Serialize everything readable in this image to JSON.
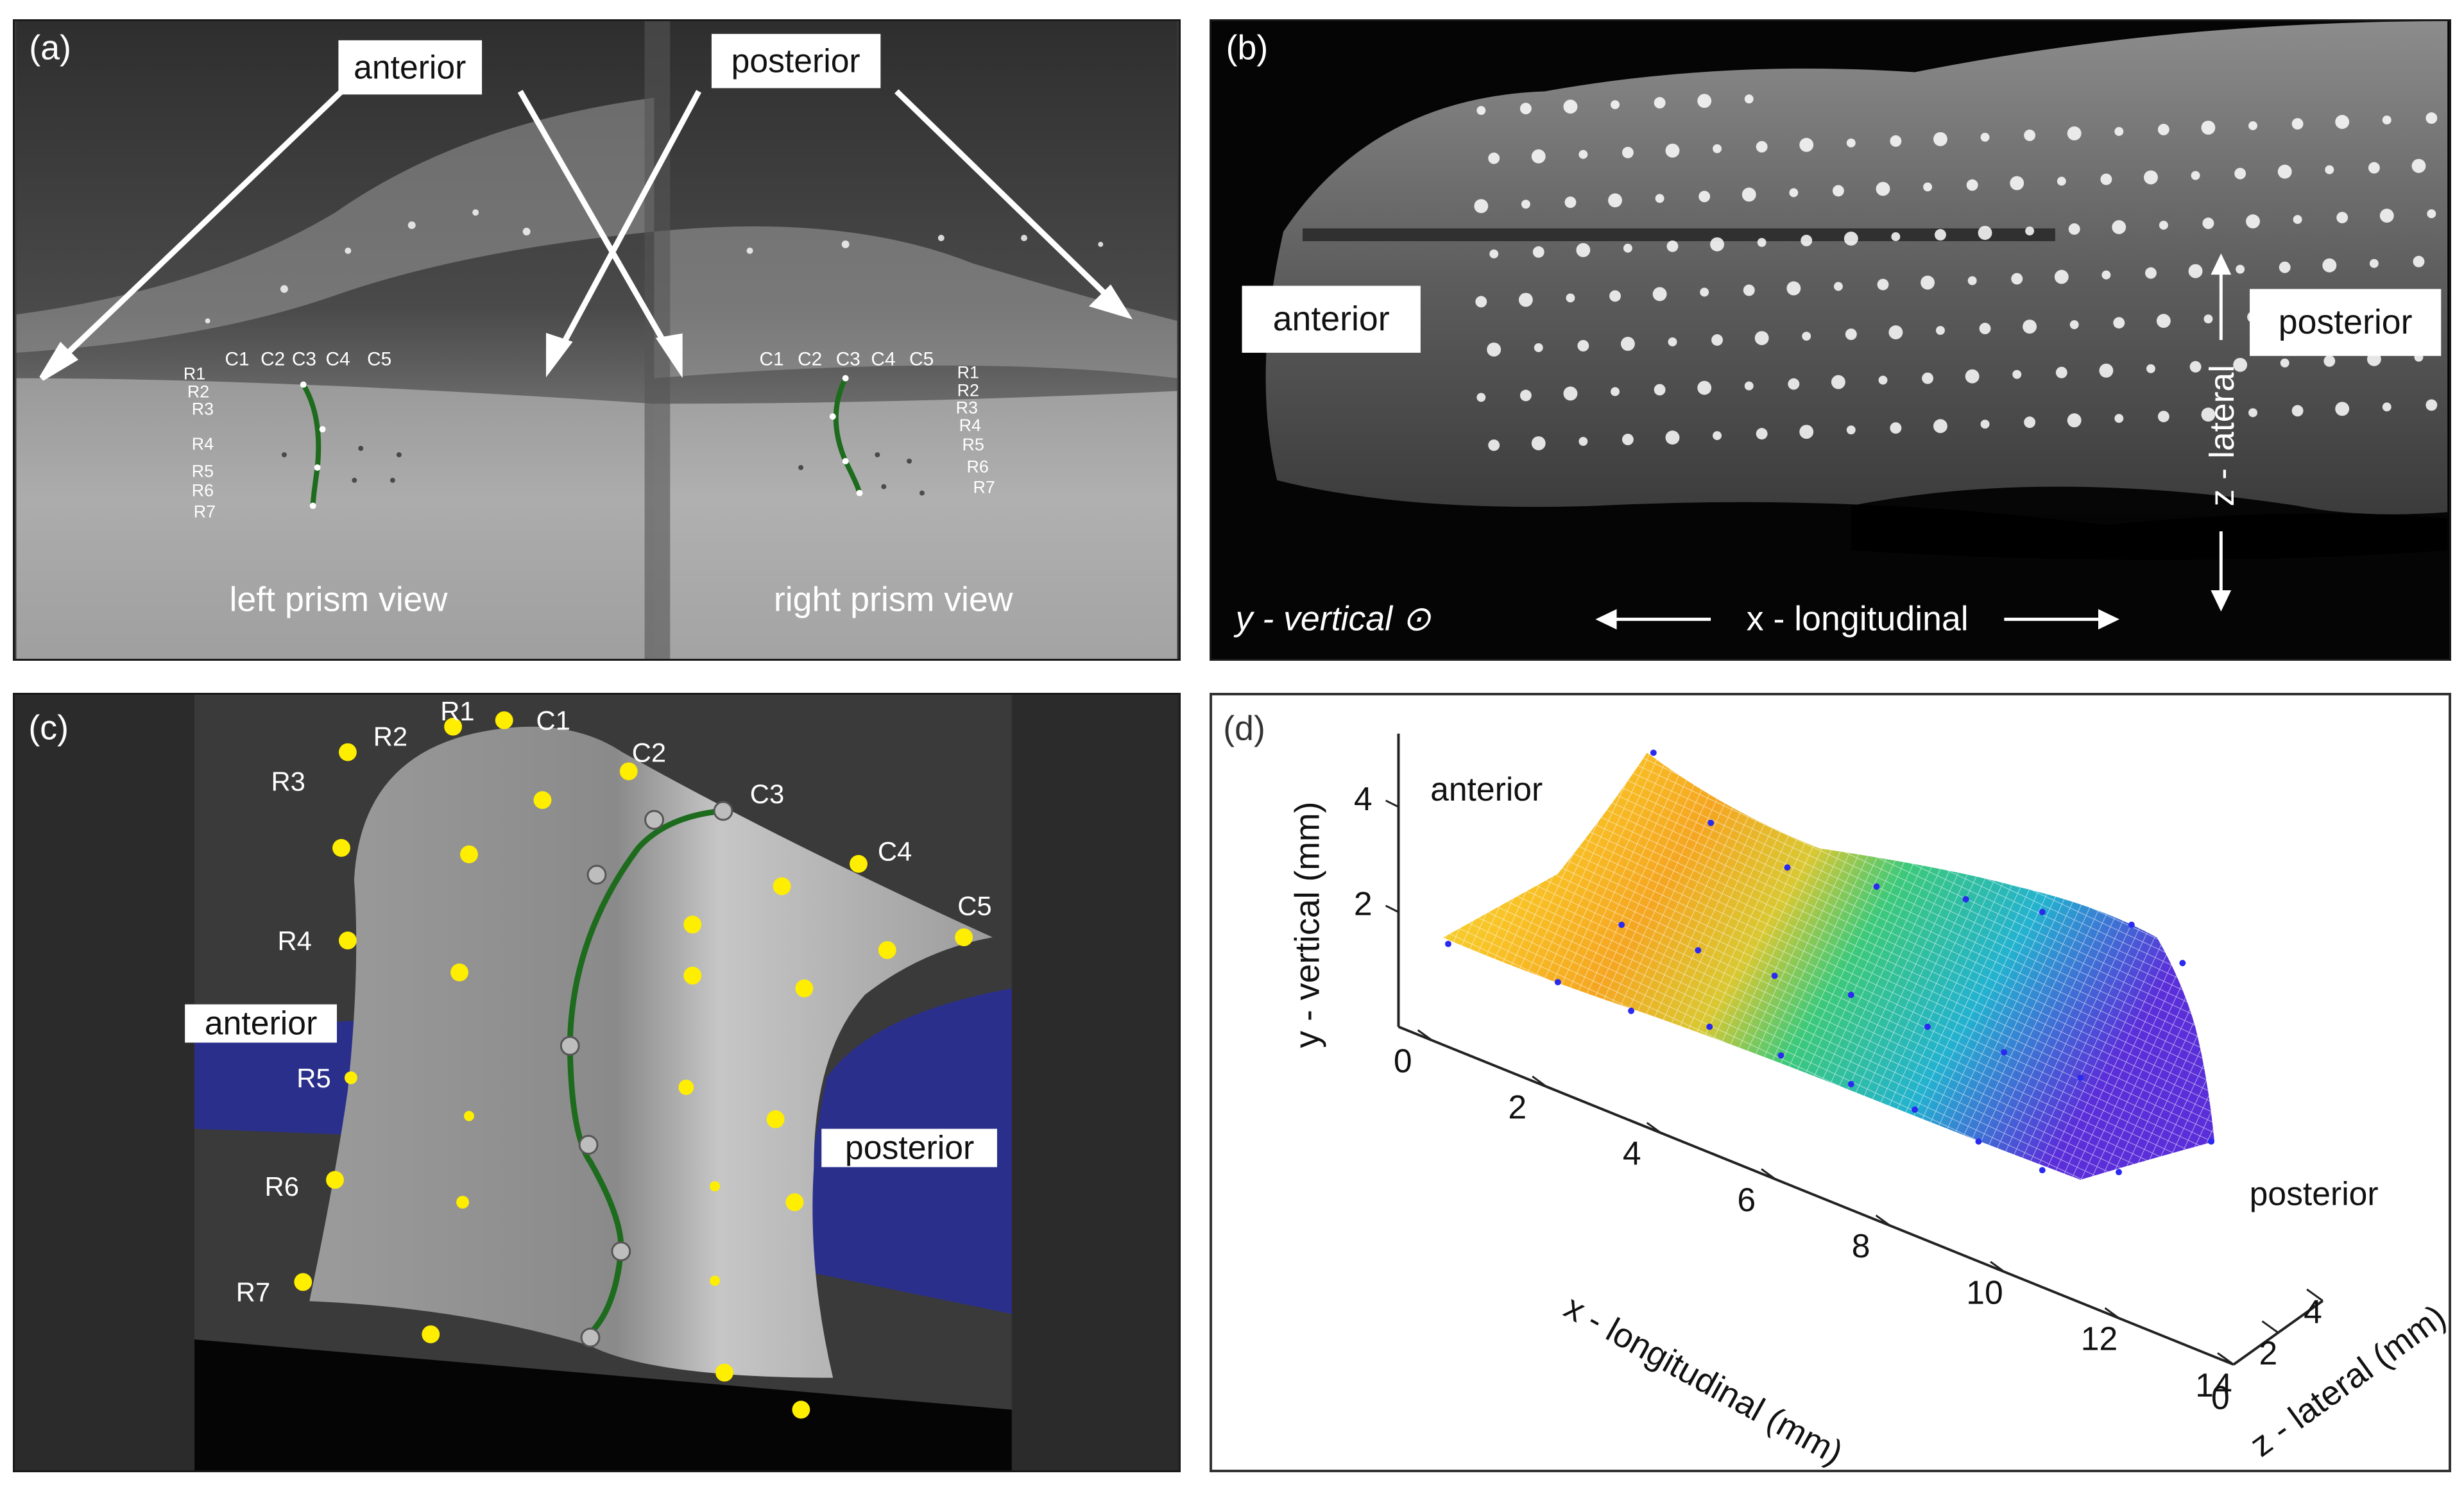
{
  "panel_a": {
    "letter": "(a)",
    "anterior_label": "anterior",
    "posterior_label": "posterior",
    "left_view_label": "left prism view",
    "right_view_label": "right prism view",
    "columns": [
      "C1",
      "C2",
      "C3",
      "C4",
      "C5"
    ],
    "rows": [
      "R1",
      "R2",
      "R3",
      "R4",
      "R5",
      "R6",
      "R7"
    ]
  },
  "panel_b": {
    "letter": "(b)",
    "anterior_label": "anterior",
    "posterior_label": "posterior",
    "axis_y": "y - vertical ⊙",
    "axis_x": "x - longitudinal",
    "axis_z": "z - lateral"
  },
  "panel_c": {
    "letter": "(c)",
    "anterior_label": "anterior",
    "posterior_label": "posterior",
    "columns": [
      "C1",
      "C2",
      "C3",
      "C4",
      "C5"
    ],
    "rows": [
      "R1",
      "R2",
      "R3",
      "R4",
      "R5",
      "R6",
      "R7"
    ]
  },
  "panel_d": {
    "letter": "(d)",
    "anterior_label": "anterior",
    "posterior_label": "posterior",
    "ylabel": "y - vertical (mm)",
    "xlabel": "x - longitudinal (mm)",
    "zlabel": "z - lateral (mm)",
    "y_ticks": [
      "2",
      "4"
    ],
    "x_ticks": [
      "0",
      "2",
      "4",
      "6",
      "8",
      "10",
      "12",
      "14"
    ],
    "z_ticks": [
      "0",
      "2",
      "4"
    ]
  },
  "colors": {
    "marker_yellow": "#ffee00",
    "curve_green": "#1d6b1d",
    "plane_blue": "#2a2f8c"
  }
}
